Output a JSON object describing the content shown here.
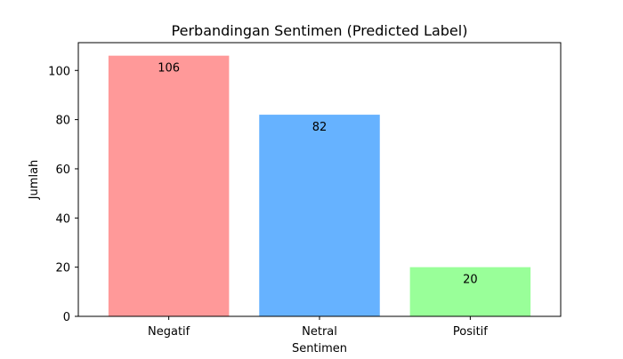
{
  "chart_data": {
    "type": "bar",
    "title": "Perbandingan Sentimen (Predicted Label)",
    "xlabel": "Sentimen",
    "ylabel": "Jumlah",
    "categories": [
      "Negatif",
      "Netral",
      "Positif"
    ],
    "values": [
      106,
      82,
      20
    ],
    "data_labels": [
      "106",
      "82",
      "20"
    ],
    "colors": [
      "#ff9999",
      "#66b2ff",
      "#99ff99"
    ],
    "ylim": [
      0,
      111.3
    ],
    "yticks": [
      0,
      20,
      40,
      60,
      80,
      100
    ],
    "ytick_labels": [
      "0",
      "20",
      "40",
      "60",
      "80",
      "100"
    ],
    "grid": false,
    "legend": "none"
  }
}
